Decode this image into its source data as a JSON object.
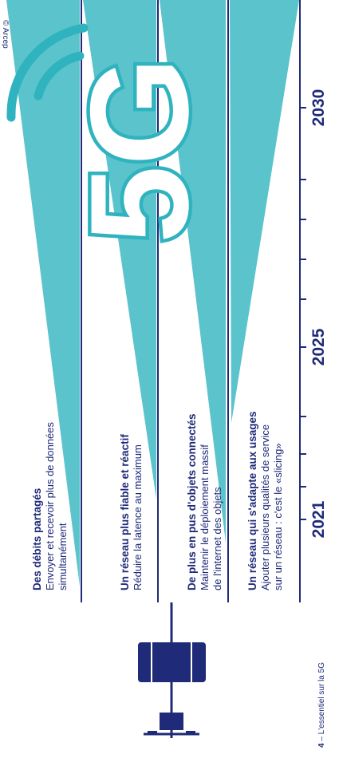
{
  "footer": {
    "page_number": "4",
    "text": "L'essentiel sur la 5G"
  },
  "credit": "© Arcep",
  "logo_text": "5G",
  "years": [
    "2021",
    "2025",
    "2030"
  ],
  "blocks": [
    {
      "title": "Des débits partagés",
      "desc": [
        "Envoyer et recevoir plus de données",
        "simultanément"
      ]
    },
    {
      "title": "Un réseau plus fiable et réactif",
      "desc": [
        "Réduire la latence au maximum"
      ]
    },
    {
      "title": "De plus en pus d'objets connectés",
      "desc": [
        "Maintenir le déploiement massif",
        "de l'internet des objets"
      ]
    },
    {
      "title": "Un réseau qui s'adapte aux usages",
      "desc": [
        "Ajouter plusieurs qualités de service",
        "sur un réseau : c'est le «slicing»"
      ]
    }
  ],
  "colors": {
    "accent_teal": "#5bc3cb",
    "navy": "#1f2a78"
  }
}
